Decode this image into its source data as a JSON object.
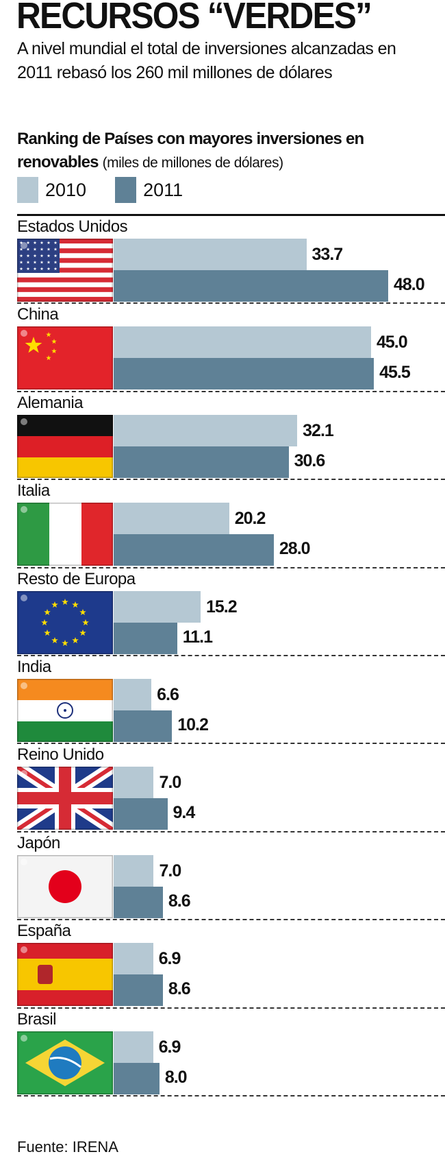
{
  "header": {
    "title": "RECURSOS “VERDES”",
    "subtitle": "A nivel mundial el total de inversiones alcanzadas en 2011 rebasó los 260 mil millones de dólares"
  },
  "footer": {
    "source": "Fuente: IRENA"
  },
  "colors": {
    "y2010": "#b5c8d3",
    "y2011": "#5f8196"
  },
  "chart_data": {
    "type": "bar",
    "orientation": "horizontal",
    "title": "Ranking de Países con mayores inversiones en renovables",
    "unit_label": "(miles de millones de dólares)",
    "legend": [
      "2010",
      "2011"
    ],
    "legend_placement": "top-left",
    "categories": [
      "Estados Unidos",
      "China",
      "Alemania",
      "Italia",
      "Resto de Europa",
      "India",
      "Reino Unido",
      "Japón",
      "España",
      "Brasil"
    ],
    "flags": [
      "usa-flag-icon",
      "china-flag-icon",
      "germany-flag-icon",
      "italy-flag-icon",
      "eu-flag-icon",
      "india-flag-icon",
      "uk-flag-icon",
      "japan-flag-icon",
      "spain-flag-icon",
      "brazil-flag-icon"
    ],
    "series": [
      {
        "name": "2010",
        "values": [
          33.7,
          45.0,
          32.1,
          20.2,
          15.2,
          6.6,
          7.0,
          7.0,
          6.9,
          6.9
        ],
        "labels": [
          "33.7",
          "45.0",
          "32.1",
          "20.2",
          "15.2",
          "6.6",
          "7.0",
          "7.0",
          "6.9",
          "6.9"
        ]
      },
      {
        "name": "2011",
        "values": [
          48.0,
          45.5,
          30.6,
          28.0,
          11.1,
          10.2,
          9.4,
          8.6,
          8.6,
          8.0
        ],
        "labels": [
          "48.0",
          "45.5",
          "30.6",
          "28.0",
          "11.1",
          "10.2",
          "9.4",
          "8.6",
          "8.6",
          "8.0"
        ]
      }
    ],
    "xlim": [
      0,
      48
    ]
  }
}
